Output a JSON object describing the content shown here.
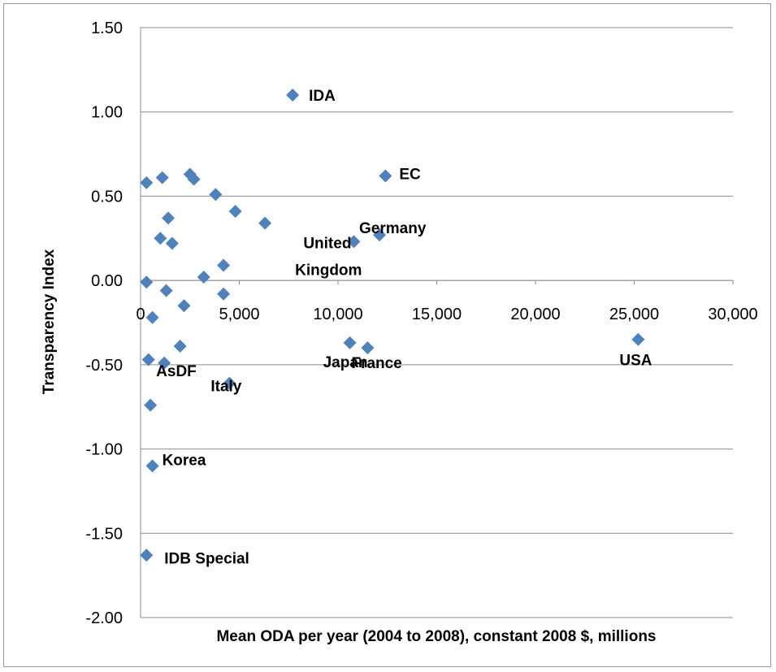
{
  "chart_data": {
    "type": "scatter",
    "title": "",
    "xlabel": "Mean ODA per year (2004 to 2008), constant 2008 $, millions",
    "ylabel": "Transparency Index",
    "xlim": [
      0,
      30000
    ],
    "ylim": [
      -2.0,
      1.5
    ],
    "x_ticks": [
      0,
      5000,
      10000,
      15000,
      20000,
      25000,
      30000
    ],
    "x_tick_labels": [
      "0",
      "5,000",
      "10,000",
      "15,000",
      "20,000",
      "25,000",
      "30,000"
    ],
    "y_ticks": [
      1.5,
      1.0,
      0.5,
      0.0,
      -0.5,
      -1.0,
      -1.5,
      -2.0
    ],
    "y_tick_labels": [
      "1.50",
      "1.00",
      "0.50",
      "0.00",
      "-0.50",
      "-1.00",
      "-1.50",
      "-2.00"
    ],
    "grid": "horizontal",
    "marker": "diamond",
    "marker_color": "#4f81bd",
    "points": [
      {
        "x": 7700,
        "y": 1.1,
        "label": "IDA"
      },
      {
        "x": 12400,
        "y": 0.62,
        "label": "EC"
      },
      {
        "x": 12100,
        "y": 0.27,
        "label": "Germany"
      },
      {
        "x": 10800,
        "y": 0.23,
        "label": "United\nKingdom"
      },
      {
        "x": 10600,
        "y": -0.37,
        "label": "Japan"
      },
      {
        "x": 11500,
        "y": -0.4,
        "label": "France"
      },
      {
        "x": 25200,
        "y": -0.35,
        "label": "USA"
      },
      {
        "x": 4500,
        "y": -0.61,
        "label": "Italy"
      },
      {
        "x": 1200,
        "y": -0.49,
        "label": "AsDF"
      },
      {
        "x": 600,
        "y": -1.1,
        "label": "Korea"
      },
      {
        "x": 300,
        "y": -1.63,
        "label": "IDB Special"
      },
      {
        "x": 300,
        "y": 0.58,
        "label": ""
      },
      {
        "x": 1100,
        "y": 0.61,
        "label": ""
      },
      {
        "x": 2500,
        "y": 0.63,
        "label": ""
      },
      {
        "x": 2700,
        "y": 0.6,
        "label": ""
      },
      {
        "x": 3800,
        "y": 0.51,
        "label": ""
      },
      {
        "x": 1400,
        "y": 0.37,
        "label": ""
      },
      {
        "x": 4800,
        "y": 0.41,
        "label": ""
      },
      {
        "x": 6300,
        "y": 0.34,
        "label": ""
      },
      {
        "x": 1000,
        "y": 0.25,
        "label": ""
      },
      {
        "x": 1600,
        "y": 0.22,
        "label": ""
      },
      {
        "x": 4200,
        "y": 0.09,
        "label": ""
      },
      {
        "x": 3200,
        "y": 0.02,
        "label": ""
      },
      {
        "x": 300,
        "y": -0.01,
        "label": ""
      },
      {
        "x": 1300,
        "y": -0.06,
        "label": ""
      },
      {
        "x": 4200,
        "y": -0.08,
        "label": ""
      },
      {
        "x": 2200,
        "y": -0.15,
        "label": ""
      },
      {
        "x": 600,
        "y": -0.22,
        "label": ""
      },
      {
        "x": 2000,
        "y": -0.39,
        "label": ""
      },
      {
        "x": 400,
        "y": -0.47,
        "label": ""
      },
      {
        "x": 500,
        "y": -0.74,
        "label": ""
      }
    ]
  }
}
